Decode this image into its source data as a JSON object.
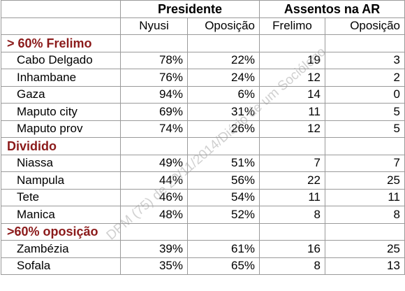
{
  "header": {
    "top": [
      "Presidente",
      "Assentos na AR"
    ],
    "sub": [
      "Nyusi",
      "Oposição",
      "Frelimo",
      "Oposição"
    ]
  },
  "groups": [
    {
      "label": "> 60% Frelimo",
      "rows": [
        [
          "Cabo Delgado",
          "78%",
          "22%",
          19,
          3
        ],
        [
          "Inhambane",
          "76%",
          "24%",
          12,
          2
        ],
        [
          "Gaza",
          "94%",
          "6%",
          14,
          0
        ],
        [
          "Maputo city",
          "69%",
          "31%",
          11,
          5
        ],
        [
          "Maputo prov",
          "74%",
          "26%",
          12,
          5
        ]
      ]
    },
    {
      "label": "Dividido",
      "rows": [
        [
          "Niassa",
          "49%",
          "51%",
          7,
          7
        ],
        [
          "Nampula",
          "44%",
          "56%",
          22,
          25
        ],
        [
          "Tete",
          "46%",
          "54%",
          11,
          11
        ],
        [
          "Manica",
          "48%",
          "52%",
          8,
          8
        ]
      ]
    },
    {
      "label": ">60% oposição",
      "rows": [
        [
          "Zambézia",
          "39%",
          "61%",
          16,
          25
        ],
        [
          "Sofala",
          "35%",
          "65%",
          8,
          13
        ]
      ]
    }
  ],
  "watermark": "DPM (75) de 20/11/2014/Diário de um Sociólogo"
}
